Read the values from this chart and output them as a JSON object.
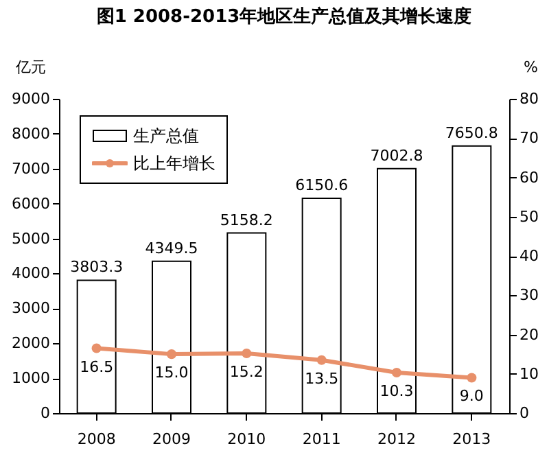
{
  "chart_data": {
    "type": "bar",
    "title": "图1  2008-2013年地区生产总值及其增长速度",
    "categories": [
      "2008",
      "2009",
      "2010",
      "2011",
      "2012",
      "2013"
    ],
    "ylabel": "亿元",
    "y2label": "%",
    "series": [
      {
        "name": "生产总值",
        "color": "#ffffff",
        "values": [
          3803.3,
          4349.5,
          5158.2,
          6150.6,
          7002.8,
          7650.8
        ],
        "value_labels": [
          "3803.3",
          "4349.5",
          "5158.2",
          "6150.6",
          "7002.8",
          "7650.8"
        ]
      },
      {
        "name": "比上年增长",
        "type": "line",
        "axis": "y2",
        "color": "#e8906a",
        "values": [
          16.5,
          15.0,
          15.2,
          13.5,
          10.3,
          9.0
        ],
        "value_labels": [
          "16.5",
          "15.0",
          "15.2",
          "13.5",
          "10.3",
          "9.0"
        ]
      }
    ],
    "ylim": [
      0,
      9000
    ],
    "yticks": [
      0,
      1000,
      2000,
      3000,
      4000,
      5000,
      6000,
      7000,
      8000,
      9000
    ],
    "y2lim": [
      0,
      80
    ],
    "y2ticks": [
      0,
      10,
      20,
      30,
      40,
      50,
      60,
      70,
      80
    ],
    "legend": "top left",
    "marker": "circle",
    "grid": false
  }
}
